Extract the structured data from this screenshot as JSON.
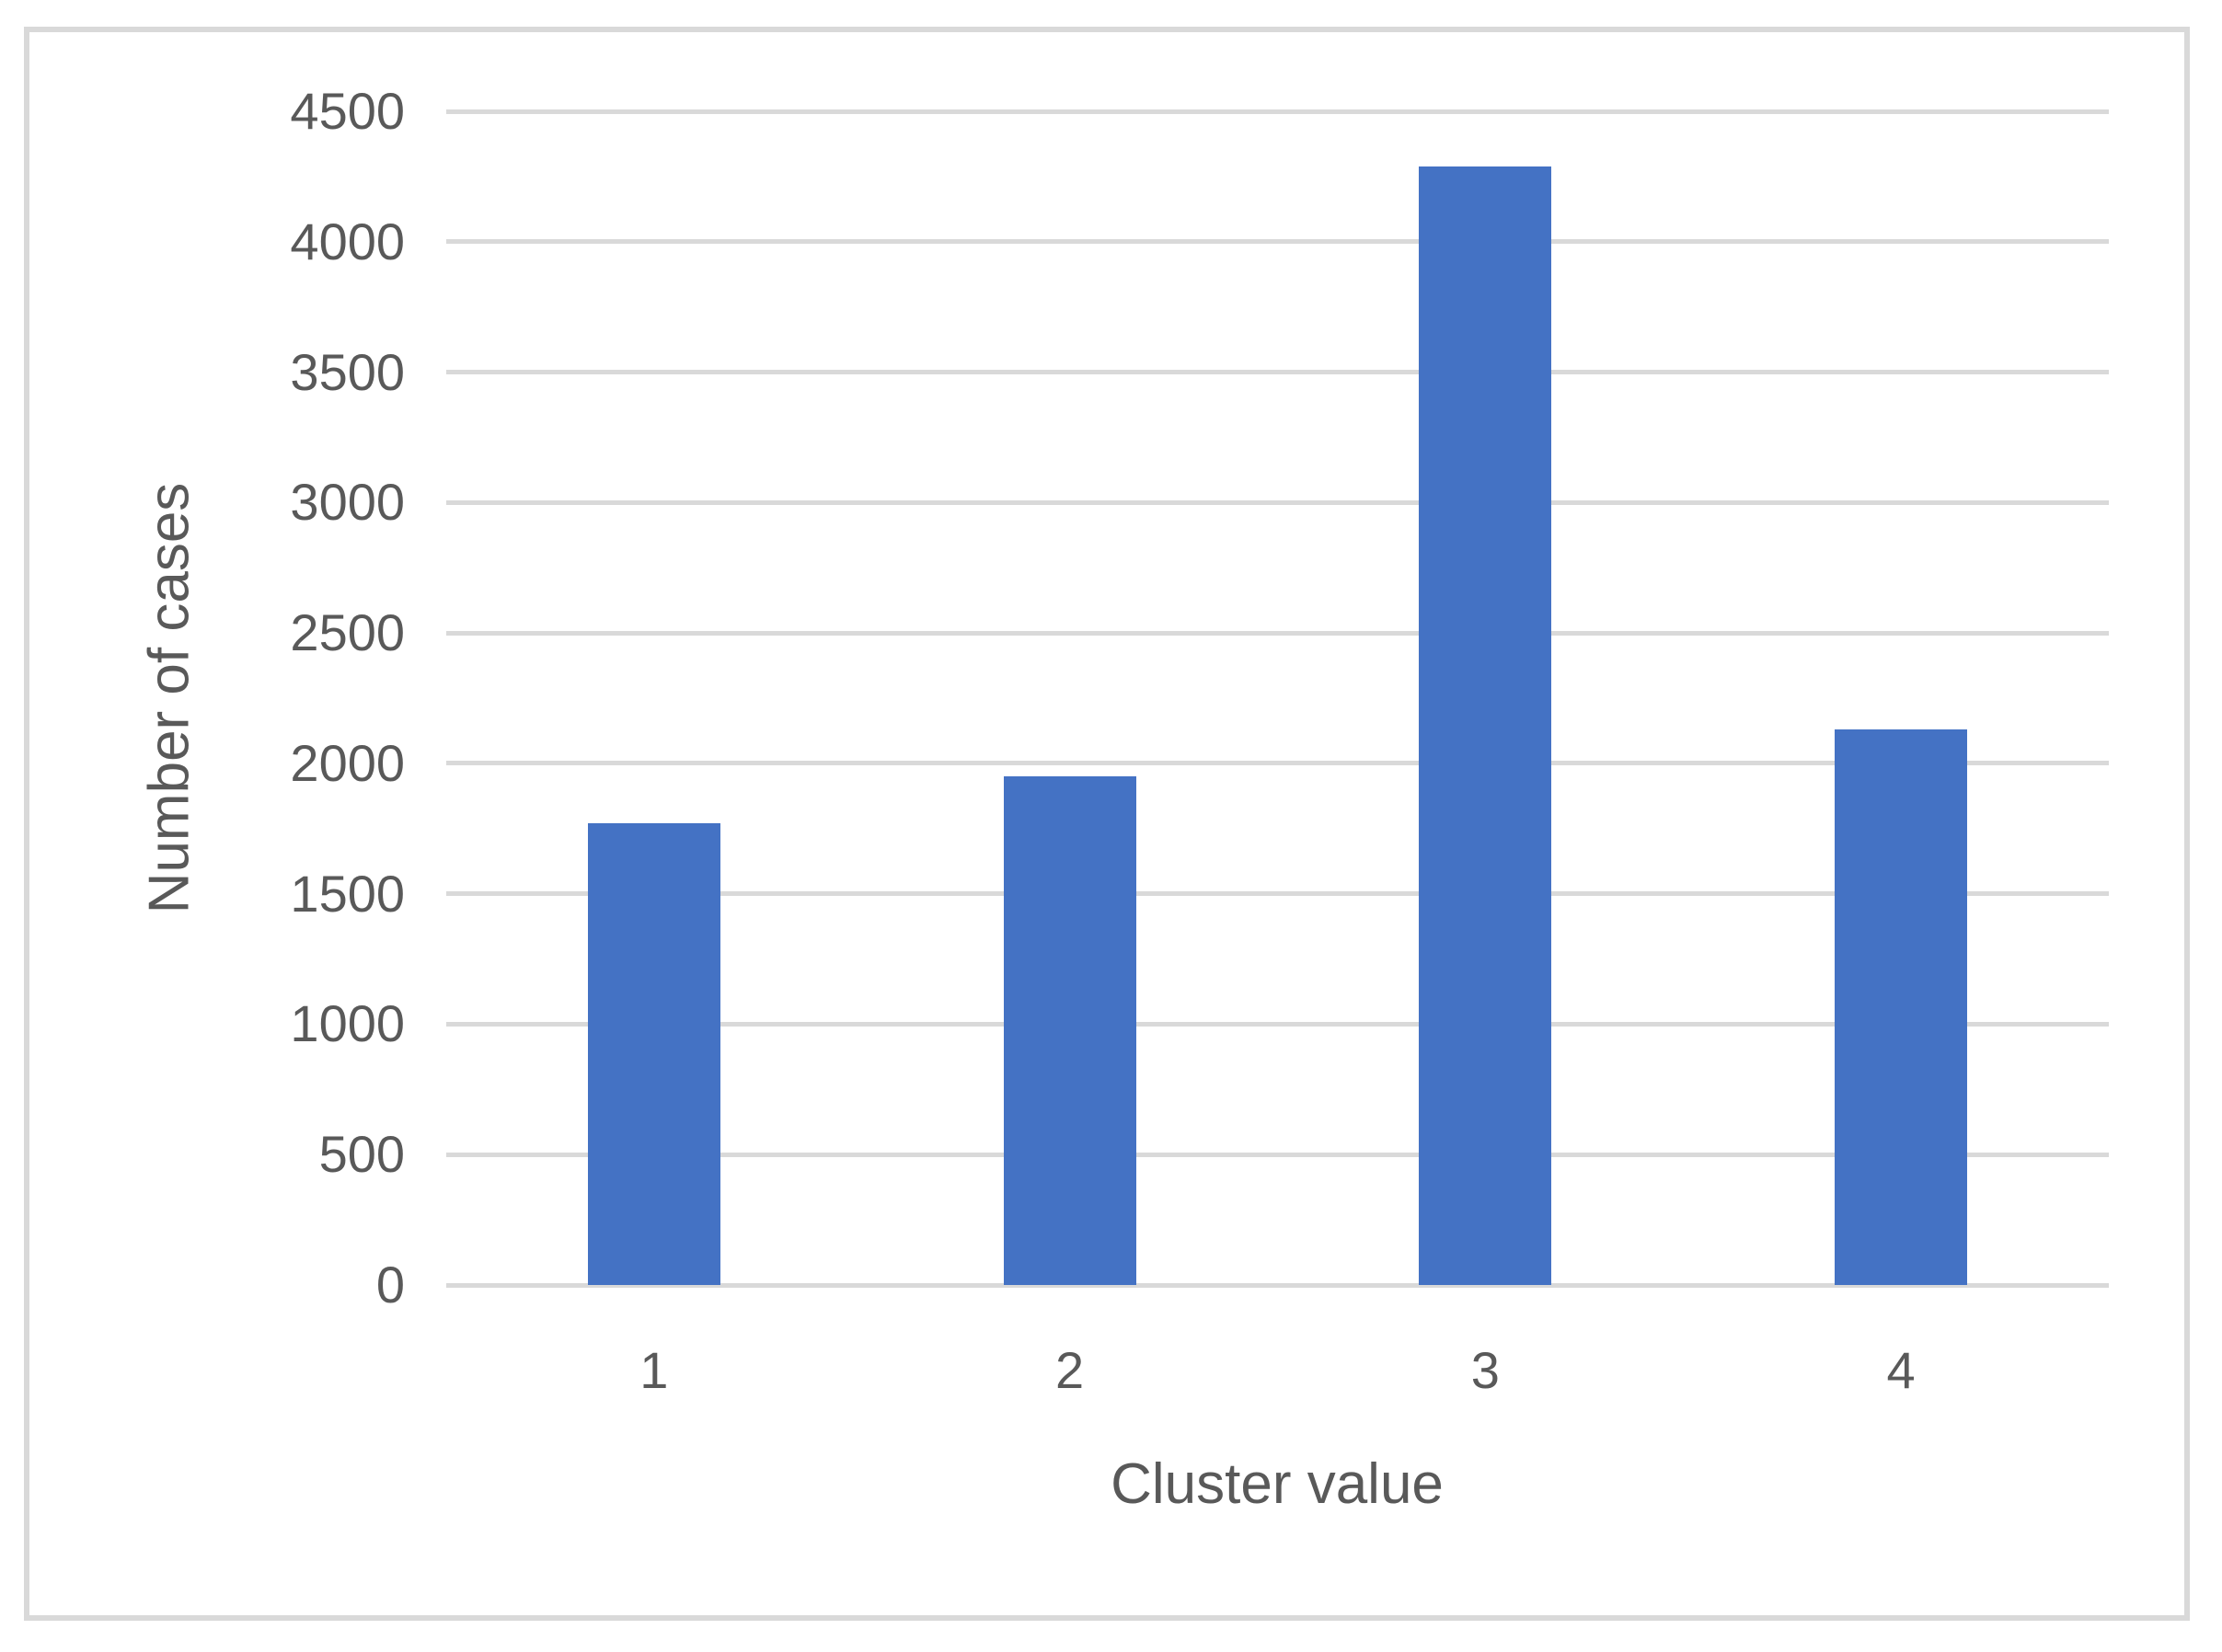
{
  "chart_data": {
    "type": "bar",
    "categories": [
      "1",
      "2",
      "3",
      "4"
    ],
    "values": [
      1770,
      1950,
      4290,
      2130
    ],
    "title": "",
    "xlabel": "Cluster value",
    "ylabel": "Number of cases",
    "ylim": [
      0,
      4500
    ],
    "yticks": [
      0,
      500,
      1000,
      1500,
      2000,
      2500,
      3000,
      3500,
      4000,
      4500
    ],
    "grid": true,
    "legend_position": "none",
    "bar_color": "#4472C4",
    "gridline_color": "#D9D9D9",
    "axis_line_color": "#D9D9D9",
    "text_color": "#595959",
    "frame_border_color": "#D9D9D9"
  }
}
